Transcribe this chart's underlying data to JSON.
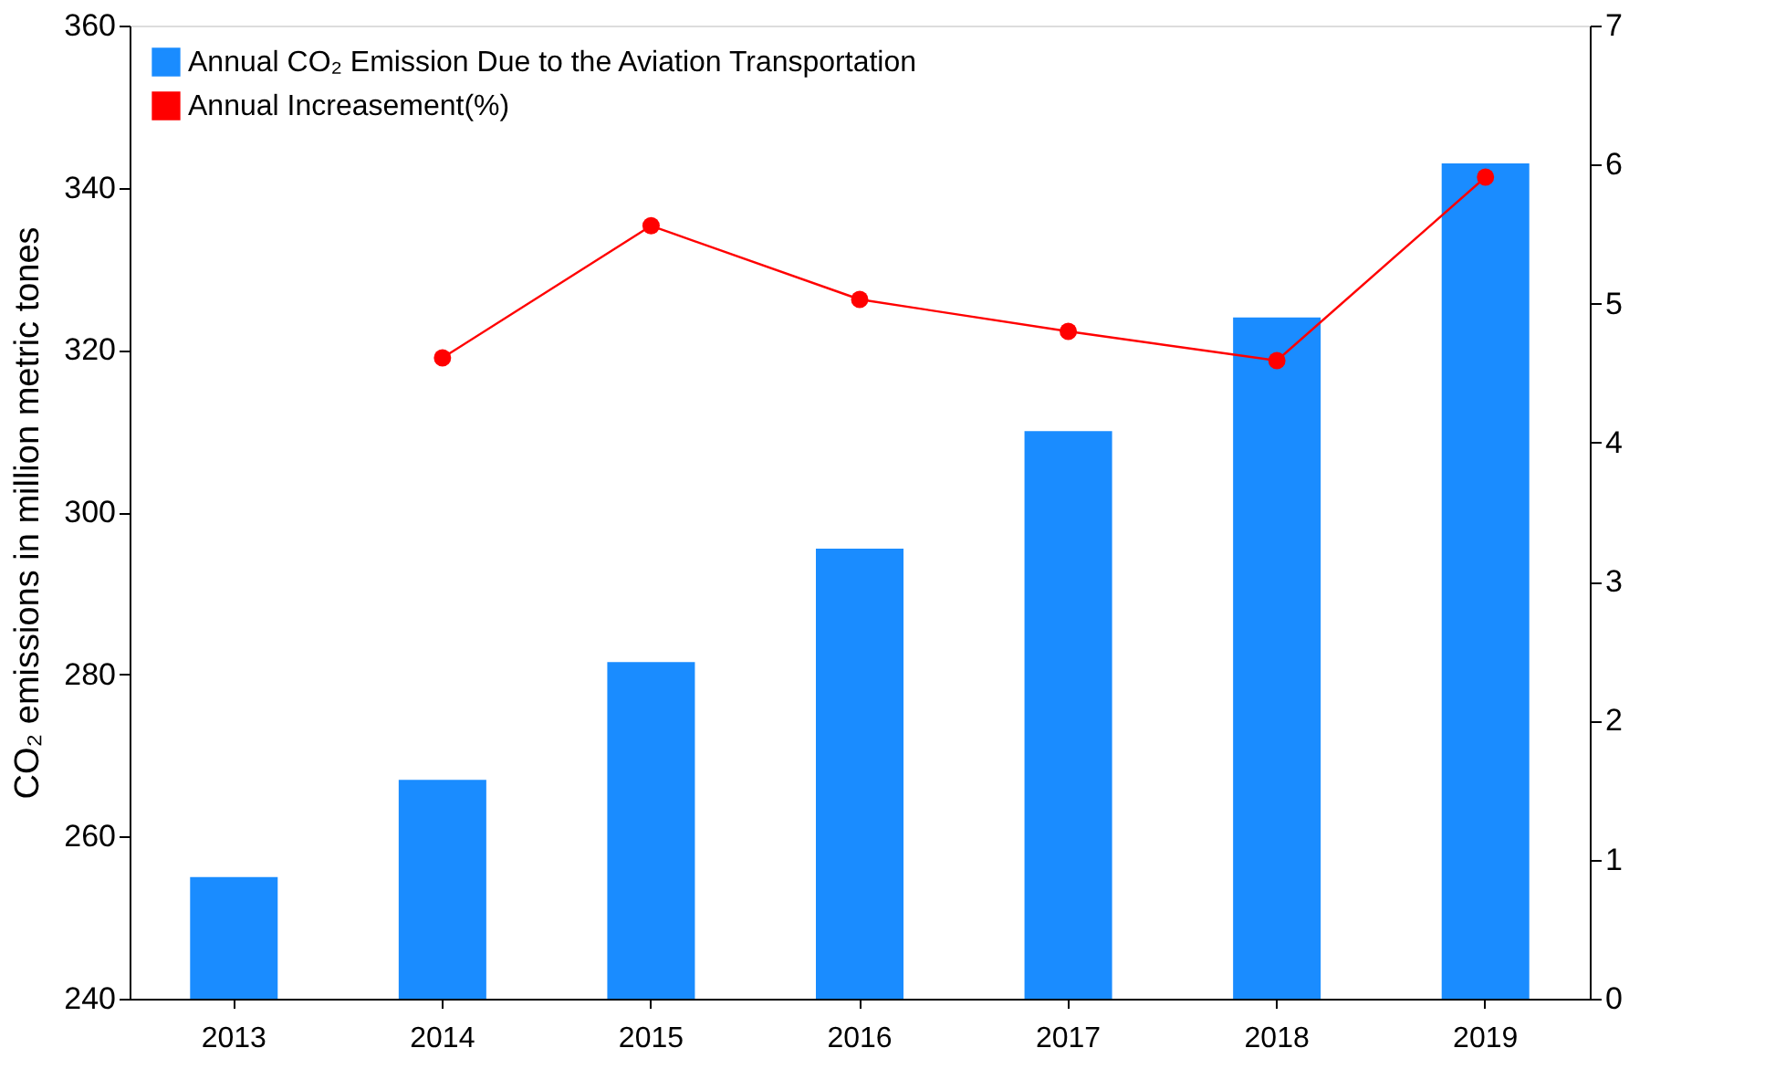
{
  "chart_data": {
    "type": "bar",
    "categories": [
      "2013",
      "2014",
      "2015",
      "2016",
      "2017",
      "2018",
      "2019"
    ],
    "ylabel": "CO₂ emissions in million metric tones",
    "ylim": [
      240,
      360
    ],
    "yticks": [
      240,
      260,
      280,
      300,
      320,
      340,
      360
    ],
    "y2lim": [
      0,
      7
    ],
    "y2ticks": [
      0,
      1,
      2,
      3,
      4,
      5,
      6,
      7
    ],
    "grid": false,
    "legend": "top left",
    "series": [
      {
        "name": "Annual CO₂ Emission Due to the Aviation Transportation",
        "color": "#1a8cff",
        "values": [
          255,
          267,
          281.5,
          295.5,
          310,
          324,
          343
        ]
      },
      {
        "name": "Annual Increasement(%)",
        "type": "line",
        "axis": "y2",
        "color": "#ff0000",
        "marker": "circle",
        "line_style": "solid",
        "values": [
          null,
          4.61,
          5.56,
          5.03,
          4.8,
          4.59,
          5.91
        ]
      }
    ]
  }
}
